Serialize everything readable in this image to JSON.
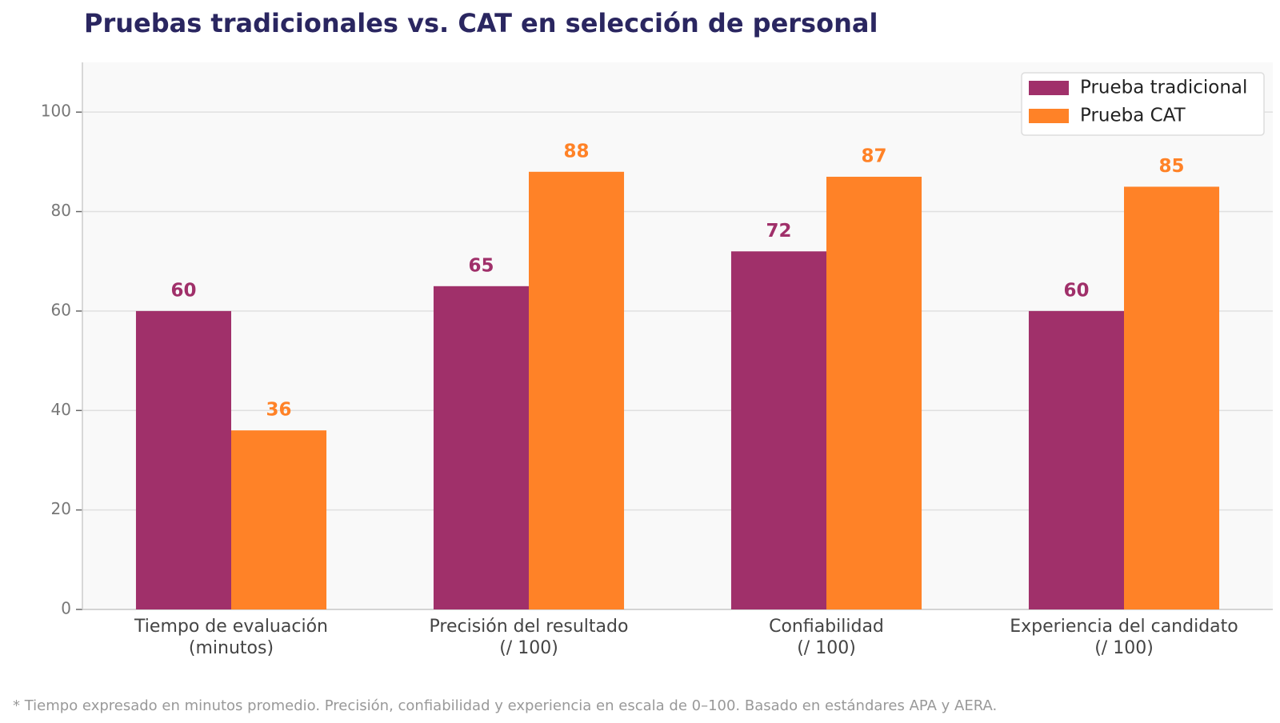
{
  "chart_data": {
    "type": "bar",
    "title": "Pruebas tradicionales vs. CAT en selección de personal",
    "categories": [
      "Tiempo de evaluación\n(minutos)",
      "Precisión del resultado\n(/ 100)",
      "Confiabilidad\n(/ 100)",
      "Experiencia del candidato\n(/ 100)"
    ],
    "series": [
      {
        "name": "Prueba tradicional",
        "color": "#a0306a",
        "values": [
          60,
          65,
          72,
          60
        ]
      },
      {
        "name": "Prueba CAT",
        "color": "#ff8227",
        "values": [
          36,
          88,
          87,
          85
        ]
      }
    ],
    "ylim": [
      0,
      110
    ],
    "yticks": [
      0,
      20,
      40,
      60,
      80,
      100
    ],
    "grid": true,
    "legend": "upper right",
    "footnote": "* Tiempo expresado en minutos promedio. Precisión, confiabilidad y experiencia en escala de 0–100. Basado en estándares APA y AERA."
  }
}
